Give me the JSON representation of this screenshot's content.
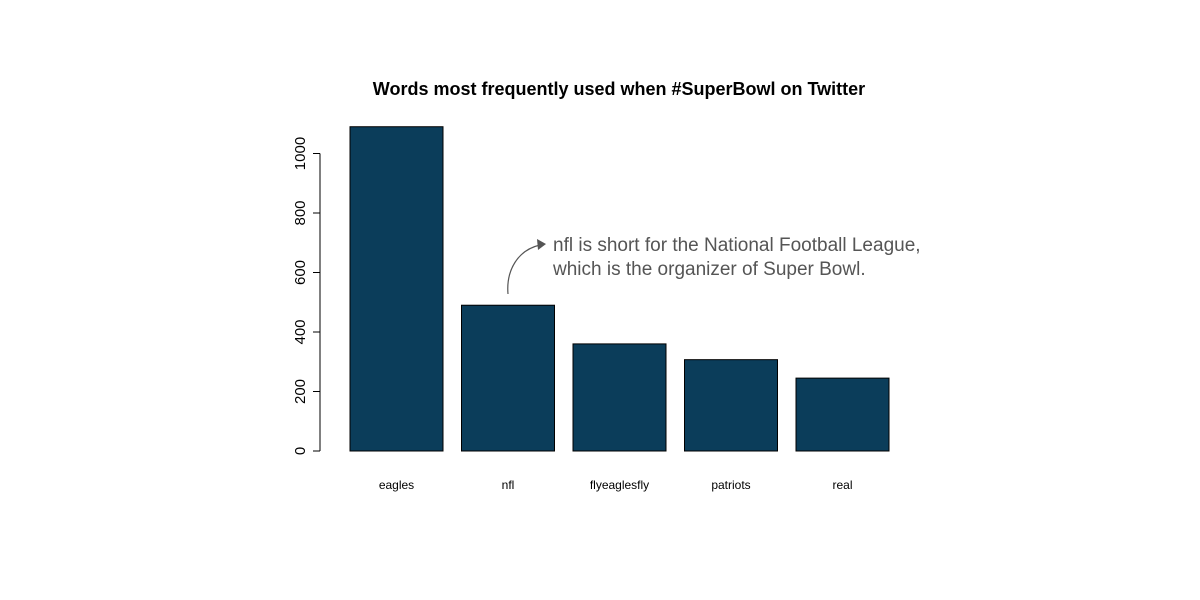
{
  "chart_data": {
    "type": "bar",
    "title": "Words most frequently used when #SuperBowl on Twitter",
    "categories": [
      "eagles",
      "nfl",
      "flyeaglesfly",
      "patriots",
      "real"
    ],
    "values": [
      1090,
      490,
      360,
      307,
      245
    ],
    "yticks": [
      0,
      200,
      400,
      600,
      800,
      1000
    ],
    "ylim": [
      0,
      1100
    ],
    "xlabel": "",
    "ylabel": "",
    "grid": false,
    "legend": "none",
    "bar_color": "#0b3d5a",
    "annotation": {
      "target": "nfl",
      "lines": [
        "nfl is short for the National Football League,",
        "which is the organizer of Super Bowl."
      ],
      "color": "#555555"
    }
  }
}
